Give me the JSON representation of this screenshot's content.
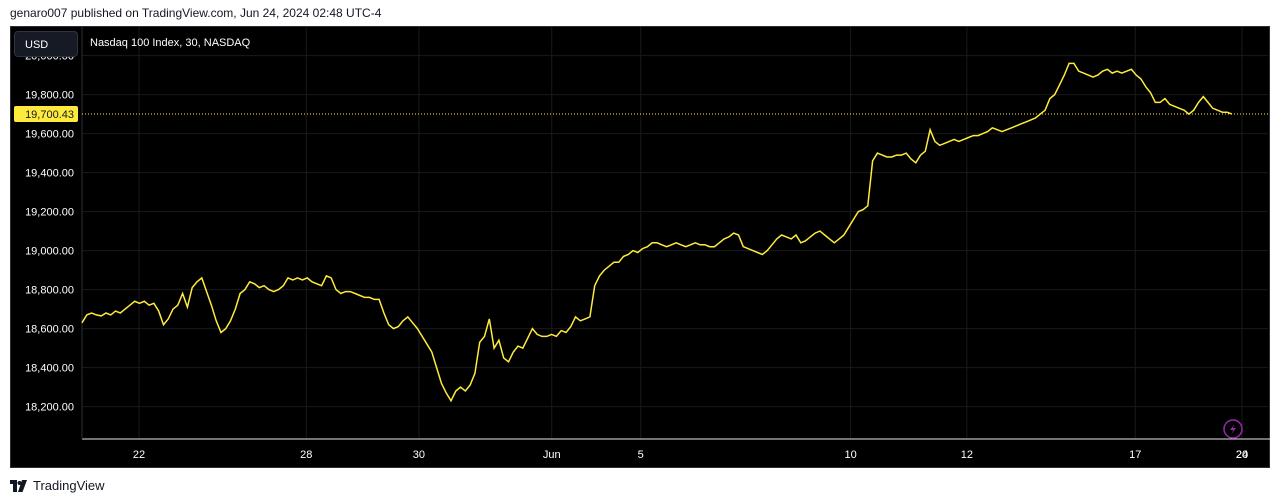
{
  "header": {
    "published_text": "genaro007 published on TradingView.com, Jun 24, 2024 02:48 UTC-4"
  },
  "toolbar": {
    "currency_label": "USD"
  },
  "chart_header": {
    "symbol_text": "Nasdaq 100 Index, 30, NASDAQ"
  },
  "colors": {
    "background": "#000000",
    "line": "#ffeb3b",
    "axis_text": "#ffffff",
    "grid": "#1a1a1a",
    "price_label_bg": "#ffeb3b",
    "price_label_text": "#131722",
    "lightning_badge": "#9c27b0"
  },
  "icons": {
    "lightning": "lightning-icon",
    "logo": "tradingview-logo-icon"
  },
  "footer": {
    "brand_label": "TradingView"
  },
  "chart_data": {
    "type": "line",
    "title": "Nasdaq 100 Index, 30, NASDAQ",
    "xlabel": "",
    "ylabel": "",
    "currency": "USD",
    "ylim": [
      18080,
      20080
    ],
    "y_ticks": [
      18200,
      18400,
      18600,
      18800,
      19000,
      19200,
      19400,
      19600,
      19800,
      20000
    ],
    "y_tick_labels": [
      "18,200.00",
      "18,400.00",
      "18,600.00",
      "18,800.00",
      "19,000.00",
      "19,200.00",
      "19,400.00",
      "19,600.00",
      "19,800.00",
      "20,000.00"
    ],
    "x_ticks": [
      "22",
      "28",
      "30",
      "Jun",
      "5",
      "10",
      "12",
      "17",
      "20",
      "24"
    ],
    "x_tick_positions": [
      0.027,
      0.168,
      0.263,
      0.375,
      0.45,
      0.627,
      0.725,
      0.867,
      0.957,
      1.05
    ],
    "last_price": 19700.43,
    "last_price_label": "19,700.43",
    "grid": true,
    "series": [
      {
        "values": [
          18630,
          18670,
          18680,
          18670,
          18665,
          18680,
          18670,
          18690,
          18680,
          18700,
          18720,
          18740,
          18730,
          18740,
          18720,
          18730,
          18690,
          18620,
          18650,
          18700,
          18720,
          18780,
          18710,
          18810,
          18840,
          18860,
          18790,
          18720,
          18640,
          18580,
          18600,
          18640,
          18700,
          18780,
          18800,
          18840,
          18830,
          18810,
          18820,
          18800,
          18790,
          18800,
          18820,
          18860,
          18850,
          18860,
          18850,
          18860,
          18840,
          18830,
          18820,
          18870,
          18860,
          18800,
          18780,
          18790,
          18790,
          18780,
          18770,
          18760,
          18760,
          18750,
          18750,
          18680,
          18620,
          18600,
          18610,
          18640,
          18660,
          18630,
          18600,
          18560,
          18520,
          18480,
          18400,
          18320,
          18270,
          18230,
          18280,
          18300,
          18280,
          18310,
          18370,
          18530,
          18560,
          18650,
          18500,
          18540,
          18450,
          18430,
          18480,
          18510,
          18500,
          18550,
          18600,
          18570,
          18560,
          18560,
          18570,
          18560,
          18590,
          18580,
          18610,
          18660,
          18640,
          18650,
          18660,
          18820,
          18870,
          18900,
          18920,
          18940,
          18940,
          18970,
          18980,
          19000,
          18990,
          19010,
          19020,
          19040,
          19040,
          19030,
          19020,
          19030,
          19040,
          19030,
          19020,
          19030,
          19040,
          19030,
          19030,
          19020,
          19020,
          19040,
          19060,
          19070,
          19090,
          19080,
          19020,
          19010,
          19000,
          18990,
          18980,
          19000,
          19030,
          19060,
          19080,
          19070,
          19060,
          19080,
          19040,
          19050,
          19070,
          19090,
          19100,
          19080,
          19060,
          19040,
          19060,
          19080,
          19120,
          19160,
          19200,
          19210,
          19230,
          19460,
          19500,
          19490,
          19480,
          19480,
          19490,
          19490,
          19500,
          19470,
          19450,
          19490,
          19510,
          19620,
          19560,
          19540,
          19550,
          19560,
          19570,
          19560,
          19570,
          19580,
          19590,
          19590,
          19600,
          19610,
          19630,
          19620,
          19610,
          19620,
          19630,
          19640,
          19650,
          19660,
          19670,
          19680,
          19700,
          19720,
          19780,
          19800,
          19850,
          19900,
          19960,
          19960,
          19920,
          19910,
          19900,
          19890,
          19900,
          19920,
          19930,
          19910,
          19920,
          19910,
          19920,
          19930,
          19900,
          19880,
          19840,
          19810,
          19760,
          19760,
          19780,
          19750,
          19740,
          19730,
          19720,
          19700,
          19720,
          19760,
          19790,
          19760,
          19730,
          19720,
          19710,
          19710,
          19700
        ]
      }
    ]
  }
}
